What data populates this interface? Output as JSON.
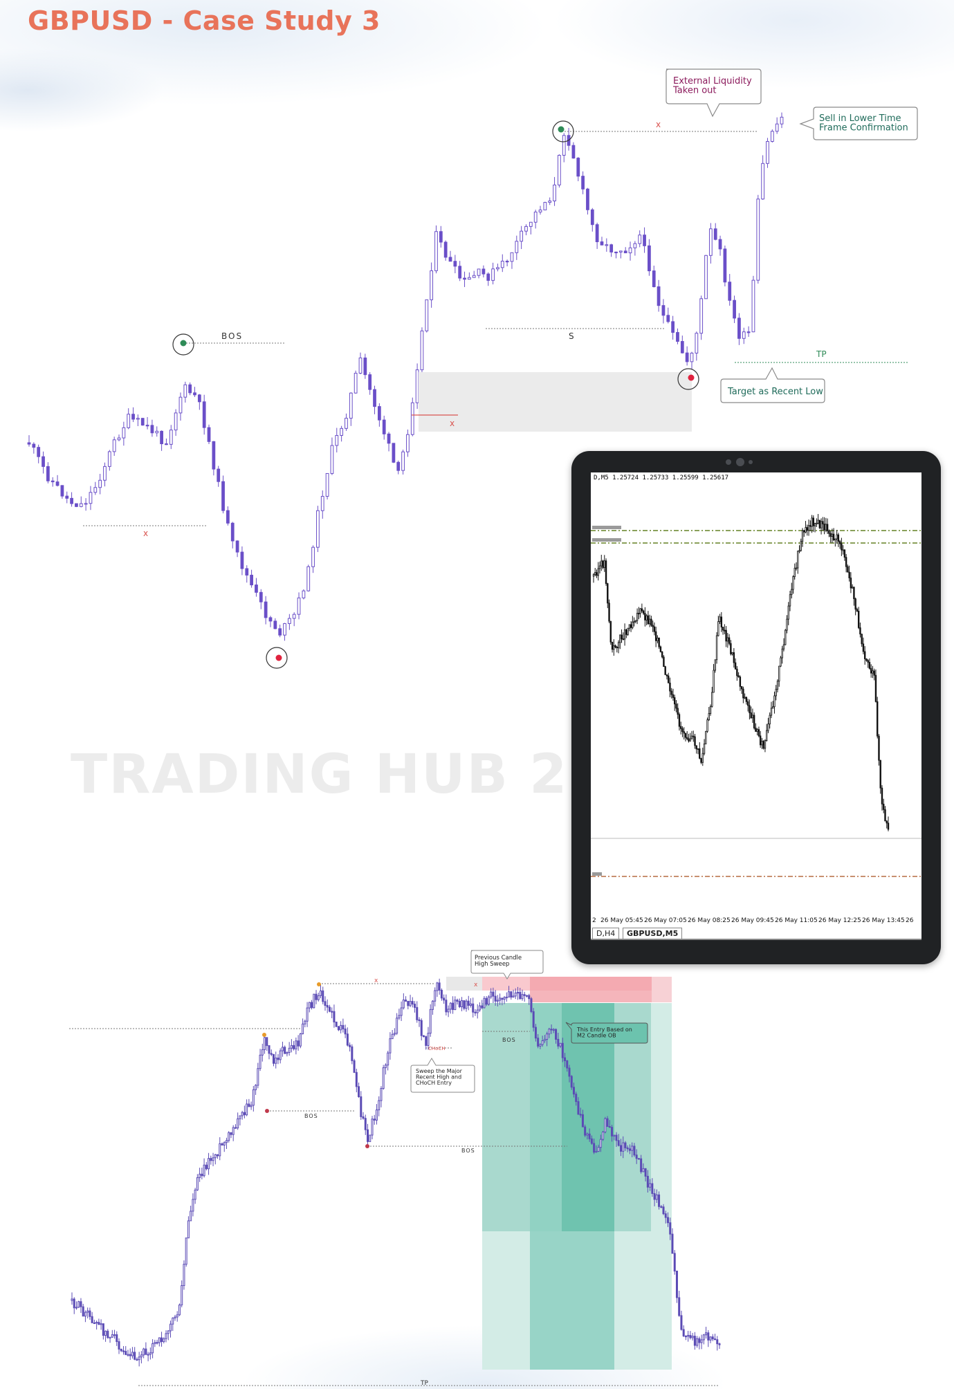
{
  "title": "GBPUSD - Case Study 3",
  "watermark": "TRADING HUB 2.O",
  "colors": {
    "title": "#e8735a",
    "candle": "#6a4fc8",
    "candle_m5": "#111111",
    "low_marker": "#e0223e",
    "high_marker": "#2e8b57",
    "zone": "#ebebeb",
    "sell_zone": "#f29aa3",
    "tp_zone": "#4fb8a2"
  },
  "top_chart": {
    "labels": {
      "bos": "BOS",
      "x_left": "x",
      "x_zone": "x",
      "x_top": "x",
      "s": "S",
      "tp": "TP"
    },
    "callouts": {
      "external_liquidity": "External Liquidity\nTaken out",
      "sell_lower_tf": "Sell in Lower Time\nFrame Confirmation",
      "target_recent_low": "Target as Recent Low"
    }
  },
  "tablet": {
    "header": "D,M5  1.25724 1.25733 1.25599 1.25617",
    "time_labels": [
      "2",
      "26 May 05:45",
      "26 May 07:05",
      "26 May 08:25",
      "26 May 09:45",
      "26 May 11:05",
      "26 May 12:25",
      "26 May 13:45",
      "26"
    ],
    "tabs": [
      "D,H4",
      "GBPUSD,M5"
    ]
  },
  "bottom_chart": {
    "labels": {
      "bos_1": "BOS",
      "bos_2": "BOS",
      "bos_3": "BOS",
      "choch": "CHoCH",
      "x_1": "x",
      "x_2": "x",
      "tp": "TP"
    },
    "callouts": {
      "prev_candle": "Previous Candle\nHigh Sweep",
      "entry_ob": "This Entry Based on\nM2 Candle OB",
      "sweep_major": "Sweep the Major\nRecent High and\nCHoCH Entry"
    }
  }
}
